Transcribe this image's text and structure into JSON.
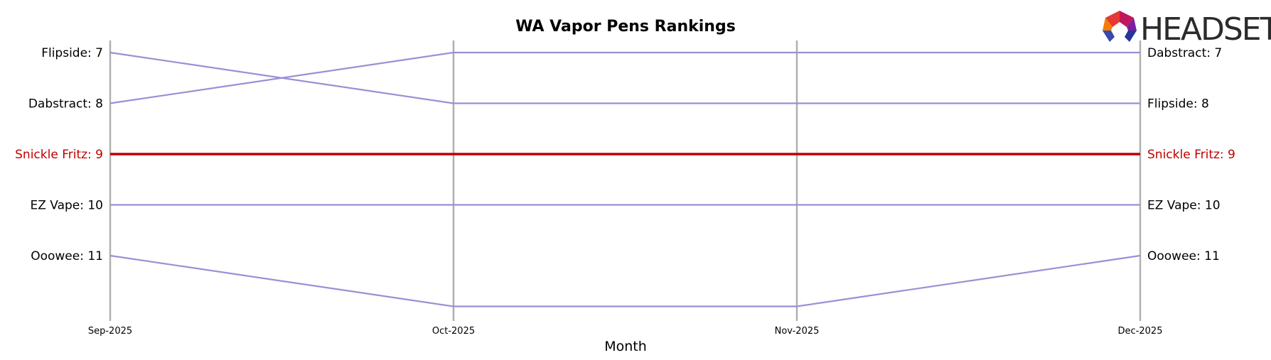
{
  "chart_data": {
    "type": "line",
    "title": "WA Vapor Pens Rankings",
    "xlabel": "Month",
    "ylabel": "",
    "categories": [
      "Sep-2025",
      "Oct-2025",
      "Nov-2025",
      "Dec-2025"
    ],
    "ylim": [
      12,
      7
    ],
    "y_direction": "inverted (rank 7 at top)",
    "grid": "vertical lines at each month",
    "series": [
      {
        "name": "Flipside",
        "values": [
          7,
          8,
          8,
          8
        ],
        "color": "#9b8fd6",
        "highlight": false
      },
      {
        "name": "Dabstract",
        "values": [
          8,
          7,
          7,
          7
        ],
        "color": "#9b8fd6",
        "highlight": false
      },
      {
        "name": "Snickle Fritz",
        "values": [
          9,
          9,
          9,
          9
        ],
        "color": "#c00000",
        "highlight": true
      },
      {
        "name": "EZ Vape",
        "values": [
          10,
          10,
          10,
          10
        ],
        "color": "#9b8fd6",
        "highlight": false
      },
      {
        "name": "Ooowee",
        "values": [
          11,
          12,
          12,
          11
        ],
        "color": "#9b8fd6",
        "highlight": false
      }
    ],
    "left_labels": [
      "Flipside: 7",
      "Dabstract: 8",
      "Snickle Fritz: 9",
      "EZ Vape: 10",
      "Ooowee: 11"
    ],
    "right_labels": [
      "Dabstract: 7",
      "Flipside: 8",
      "Snickle Fritz: 9",
      "EZ Vape: 10",
      "Ooowee: 11"
    ]
  },
  "logo": {
    "text": "HEADSET"
  },
  "colors": {
    "default_line": "#9b8fd6",
    "highlight_line": "#c00000",
    "gridline": "#b0b0b0"
  }
}
